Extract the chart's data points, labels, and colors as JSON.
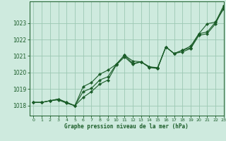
{
  "title": "Graphe pression niveau de la mer (hPa)",
  "background_color": "#ceeade",
  "grid_color": "#9cc8b4",
  "line_color": "#1a5c28",
  "xlim": [
    -0.5,
    23
  ],
  "ylim": [
    1017.4,
    1024.3
  ],
  "yticks": [
    1018,
    1019,
    1020,
    1021,
    1022,
    1023
  ],
  "xticks": [
    0,
    1,
    2,
    3,
    4,
    5,
    6,
    7,
    8,
    9,
    10,
    11,
    12,
    13,
    14,
    15,
    16,
    17,
    18,
    19,
    20,
    21,
    22,
    23
  ],
  "series1": [
    1018.2,
    1018.2,
    1018.3,
    1018.35,
    1018.15,
    1018.0,
    1018.85,
    1019.05,
    1019.55,
    1019.75,
    1020.5,
    1021.05,
    1020.55,
    1020.65,
    1020.35,
    1020.25,
    1021.55,
    1021.15,
    1021.35,
    1021.5,
    1022.35,
    1022.45,
    1023.05,
    1024.05
  ],
  "series2": [
    1018.2,
    1018.2,
    1018.3,
    1018.4,
    1018.2,
    1018.0,
    1019.15,
    1019.4,
    1019.9,
    1020.15,
    1020.5,
    1021.05,
    1020.7,
    1020.65,
    1020.35,
    1020.3,
    1021.55,
    1021.15,
    1021.35,
    1021.6,
    1022.35,
    1022.95,
    1023.05,
    1023.85
  ],
  "series3": [
    1018.2,
    1018.2,
    1018.3,
    1018.4,
    1018.2,
    1018.0,
    1018.5,
    1018.85,
    1019.3,
    1019.55,
    1020.45,
    1020.95,
    1020.5,
    1020.65,
    1020.3,
    1020.25,
    1021.55,
    1021.15,
    1021.25,
    1021.45,
    1022.25,
    1022.35,
    1022.95,
    1023.95
  ]
}
